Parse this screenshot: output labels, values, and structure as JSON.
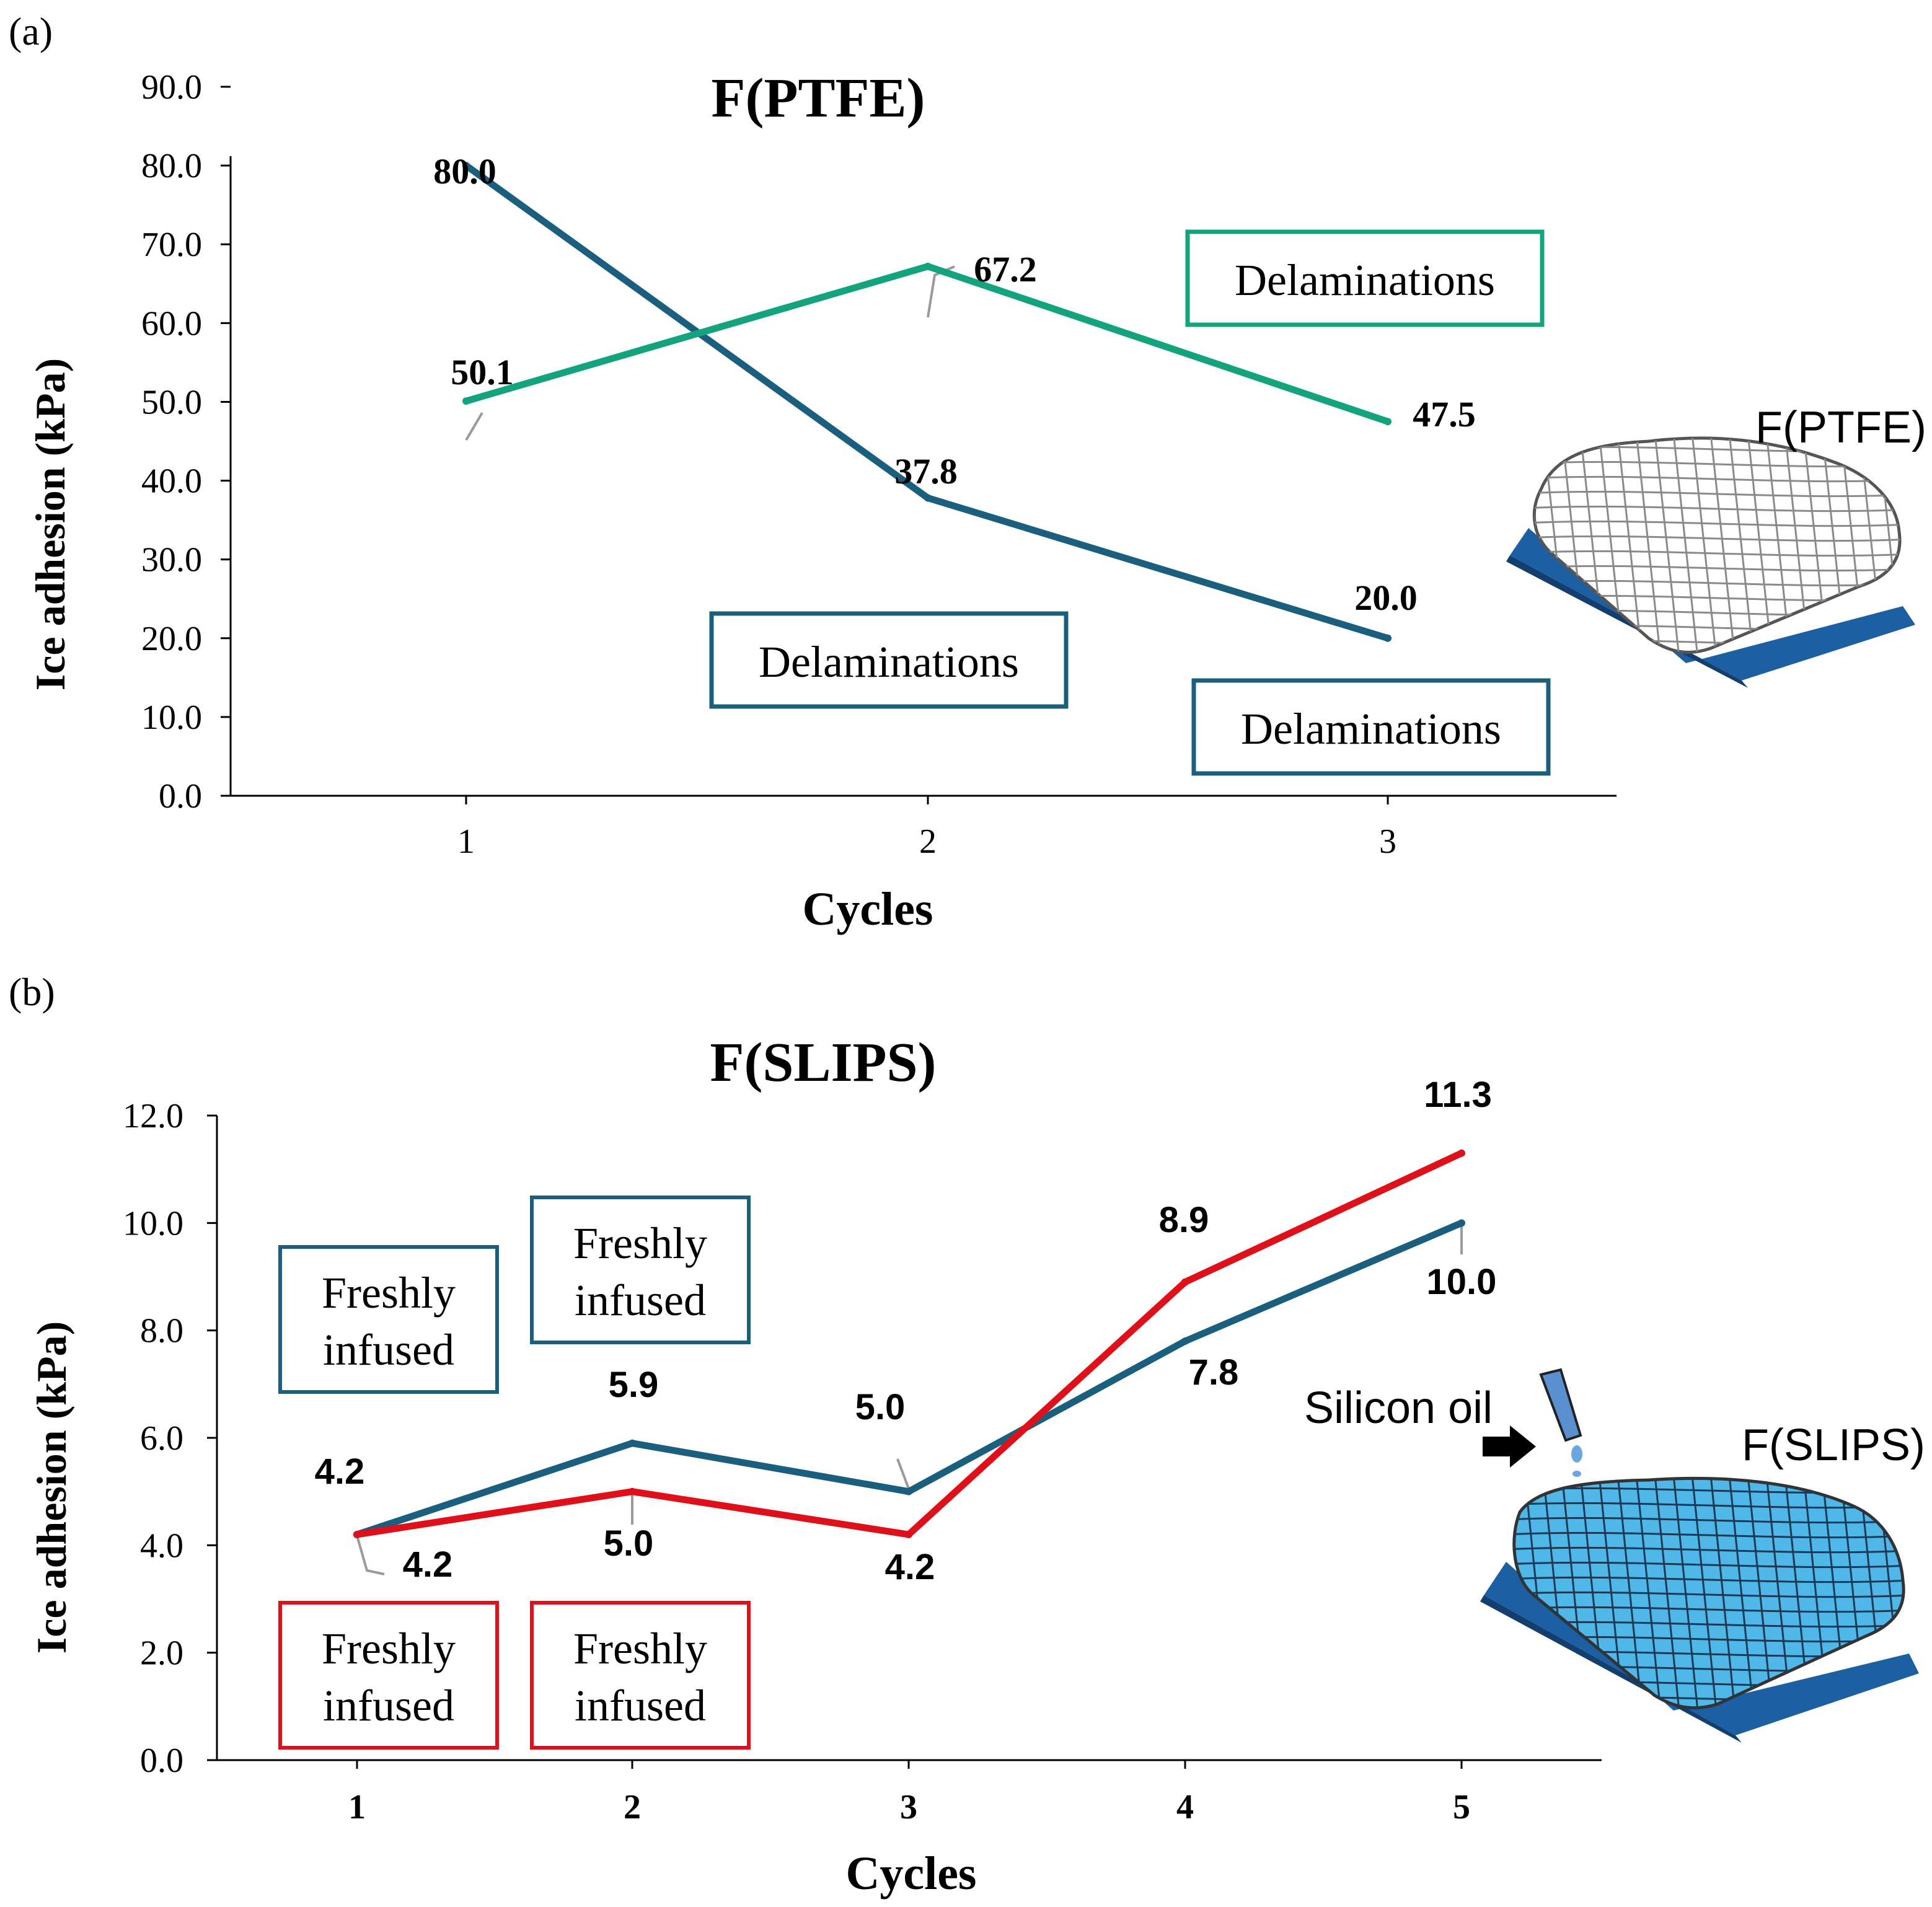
{
  "chart_data": [
    {
      "panel_label": "(a)",
      "type": "line",
      "title": "F(PTFE)",
      "xlabel": "Cycles",
      "ylabel": "Ice adhesion (kPa)",
      "categories": [
        "1",
        "2",
        "3"
      ],
      "yticks": [
        "0.0",
        "10.0",
        "20.0",
        "30.0",
        "40.0",
        "50.0",
        "60.0",
        "70.0",
        "80.0",
        "90.0"
      ],
      "ylim": [
        0,
        90
      ],
      "grid": false,
      "series": [
        {
          "color": "#1b5f7e",
          "values": [
            80.0,
            37.8,
            20.0
          ],
          "labels": [
            "80.0",
            "37.8",
            "20.0"
          ]
        },
        {
          "color": "#14a37f",
          "values": [
            50.1,
            67.2,
            47.5
          ],
          "labels": [
            "50.1",
            "67.2",
            "47.5"
          ]
        }
      ],
      "annotations": [
        {
          "text": "Delaminations",
          "color": "#14a37f"
        },
        {
          "text": "Delaminations",
          "color": "#1b5f7e"
        },
        {
          "text": "Delaminations",
          "color": "#1b5f7e"
        }
      ],
      "illustration": {
        "label": "F(PTFE)",
        "fill": "#ffffff"
      }
    },
    {
      "panel_label": "(b)",
      "type": "line",
      "title": "F(SLIPS)",
      "xlabel": "Cycles",
      "ylabel": "Ice adhesion (kPa)",
      "categories": [
        "1",
        "2",
        "3",
        "4",
        "5"
      ],
      "yticks": [
        "0.0",
        "2.0",
        "4.0",
        "6.0",
        "8.0",
        "10.0",
        "12.0"
      ],
      "ylim": [
        0,
        12
      ],
      "grid": false,
      "series": [
        {
          "color": "#1b5f7e",
          "values": [
            4.2,
            5.9,
            5.0,
            7.8,
            10.0
          ],
          "labels": [
            "4.2",
            "5.9",
            "5.0",
            "7.8",
            "10.0"
          ]
        },
        {
          "color": "#e0101a",
          "values": [
            4.2,
            5.0,
            4.2,
            8.9,
            11.3
          ],
          "labels": [
            "4.2",
            "5.0",
            "4.2",
            "8.9",
            "11.3"
          ]
        }
      ],
      "annotations": [
        {
          "lines": [
            "Freshly",
            "infused"
          ],
          "color": "#1b5f7e"
        },
        {
          "lines": [
            "Freshly",
            "infused"
          ],
          "color": "#1b5f7e"
        },
        {
          "lines": [
            "Freshly",
            "infused"
          ],
          "color": "#e0101a"
        },
        {
          "lines": [
            "Freshly",
            "infused"
          ],
          "color": "#e0101a"
        }
      ],
      "illustration": {
        "label": "F(SLIPS)",
        "fill": "#4fb8e8",
        "note": "Silicon oil"
      }
    }
  ]
}
